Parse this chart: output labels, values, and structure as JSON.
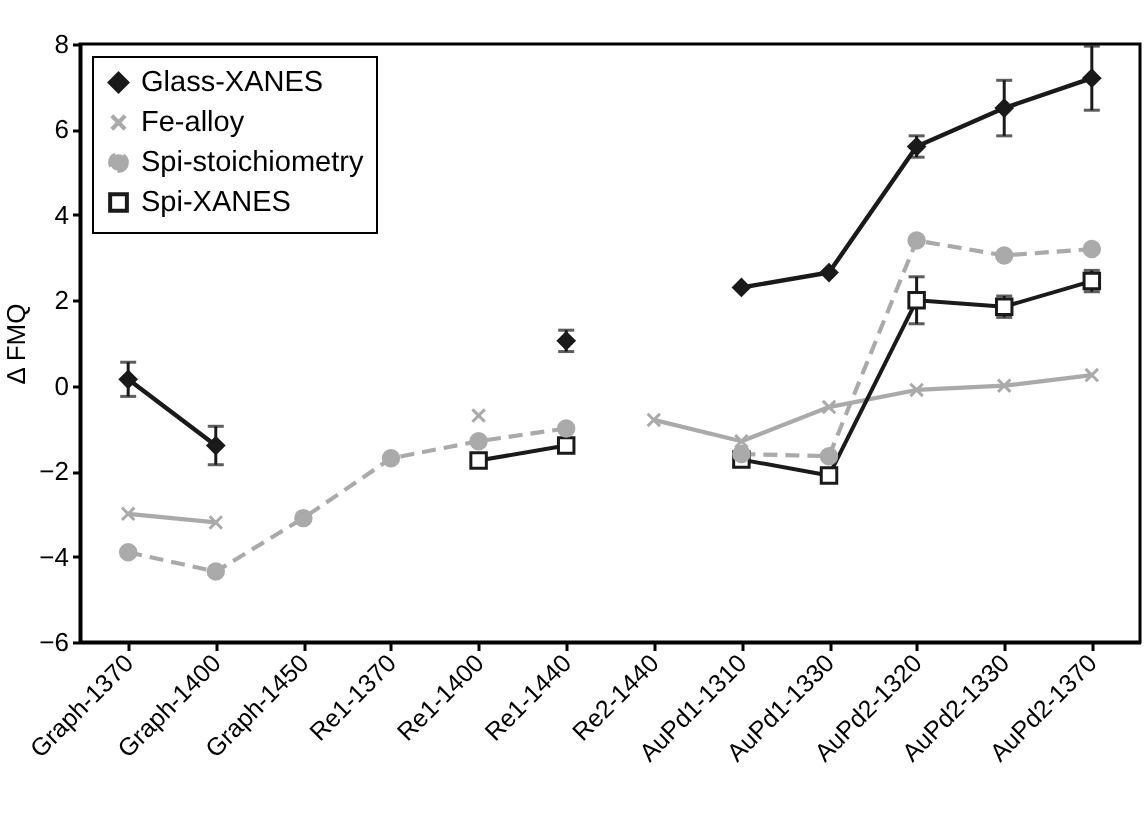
{
  "chart_data": {
    "type": "line",
    "ylabel": "Δ FMQ",
    "categories": [
      "Graph-1370",
      "Graph-1400",
      "Graph-1450",
      "Re1-1370",
      "Re1-1400",
      "Re1-1440",
      "Re2-1440",
      "AuPd1-1310",
      "AuPd1-1330",
      "AuPd2-1320",
      "AuPd2-1330",
      "AuPd2-1370"
    ],
    "series": [
      {
        "name": "Glass-XANES",
        "color": "#1a1a1a",
        "marker": "diamond",
        "line_style": "solid",
        "values": [
          0.15,
          -1.4,
          null,
          null,
          null,
          1.05,
          null,
          2.3,
          2.65,
          5.6,
          6.5,
          7.2
        ],
        "errors": [
          0.4,
          0.45,
          null,
          null,
          null,
          0.25,
          null,
          null,
          null,
          0.25,
          0.65,
          0.75
        ]
      },
      {
        "name": "Fe-alloy",
        "color": "#aaaaaa",
        "marker": "cross",
        "line_style": "solid",
        "values": [
          -3.0,
          -3.2,
          null,
          null,
          -0.7,
          null,
          -0.8,
          -1.3,
          -0.5,
          -0.1,
          0,
          0.25
        ]
      },
      {
        "name": "Spi-stoichiometry",
        "color": "#aaaaaa",
        "marker": "circle",
        "line_style": "dashed",
        "values": [
          -3.9,
          -4.35,
          -3.1,
          -1.7,
          -1.3,
          -1.0,
          null,
          -1.6,
          -1.65,
          3.4,
          3.05,
          3.2
        ]
      },
      {
        "name": "Spi-XANES",
        "color": "#1a1a1a",
        "marker": "square",
        "line_style": "solid",
        "values": [
          null,
          null,
          null,
          null,
          -1.75,
          -1.4,
          null,
          -1.73,
          -2.1,
          2.0,
          1.85,
          2.45
        ],
        "errors": [
          null,
          null,
          null,
          null,
          null,
          null,
          null,
          null,
          null,
          0.55,
          0.25,
          0.25
        ]
      }
    ],
    "ylim": [
      -6,
      8
    ],
    "yticks": [
      -6,
      -4,
      -2,
      0,
      2,
      4,
      6,
      8
    ],
    "grid": false,
    "legend": "top left"
  }
}
